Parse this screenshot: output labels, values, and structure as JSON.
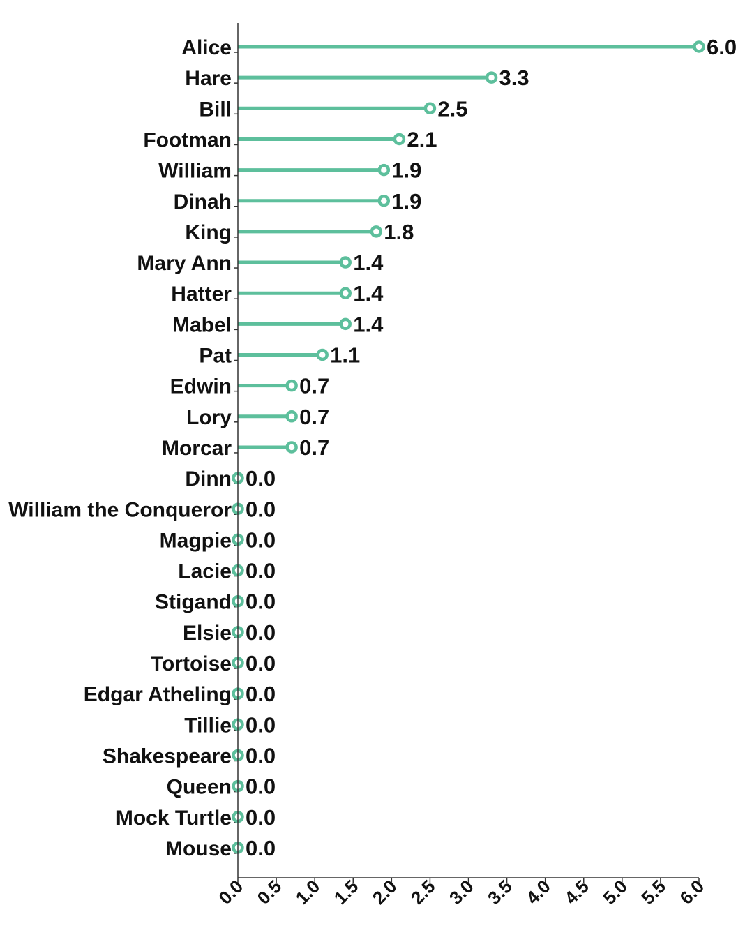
{
  "chart_data": {
    "type": "lollipop",
    "orientation": "horizontal",
    "title": "",
    "xlabel": "",
    "ylabel": "",
    "xlim": [
      0,
      6
    ],
    "x_ticks": [
      "0.0",
      "0.5",
      "1.0",
      "1.5",
      "2.0",
      "2.5",
      "3.0",
      "3.5",
      "4.0",
      "4.5",
      "5.0",
      "5.5",
      "6.0"
    ],
    "grid": false,
    "color": "#5dbf9c",
    "categories": [
      "Alice",
      "Hare",
      "Bill",
      "Footman",
      "William",
      "Dinah",
      "King",
      "Mary Ann",
      "Hatter",
      "Mabel",
      "Pat",
      "Edwin",
      "Lory",
      "Morcar",
      "Dinn",
      "William the Conqueror",
      "Magpie",
      "Lacie",
      "Stigand",
      "Elsie",
      "Tortoise",
      "Edgar Atheling",
      "Tillie",
      "Shakespeare",
      "Queen",
      "Mock Turtle",
      "Mouse"
    ],
    "values": [
      6.0,
      3.3,
      2.5,
      2.1,
      1.9,
      1.9,
      1.8,
      1.4,
      1.4,
      1.4,
      1.1,
      0.7,
      0.7,
      0.7,
      0.0,
      0.0,
      0.0,
      0.0,
      0.0,
      0.0,
      0.0,
      0.0,
      0.0,
      0.0,
      0.0,
      0.0,
      0.0
    ],
    "value_labels": [
      "6.0",
      "3.3",
      "2.5",
      "2.1",
      "1.9",
      "1.9",
      "1.8",
      "1.4",
      "1.4",
      "1.4",
      "1.1",
      "0.7",
      "0.7",
      "0.7",
      "0.0",
      "0.0",
      "0.0",
      "0.0",
      "0.0",
      "0.0",
      "0.0",
      "0.0",
      "0.0",
      "0.0",
      "0.0",
      "0.0",
      "0.0"
    ]
  }
}
